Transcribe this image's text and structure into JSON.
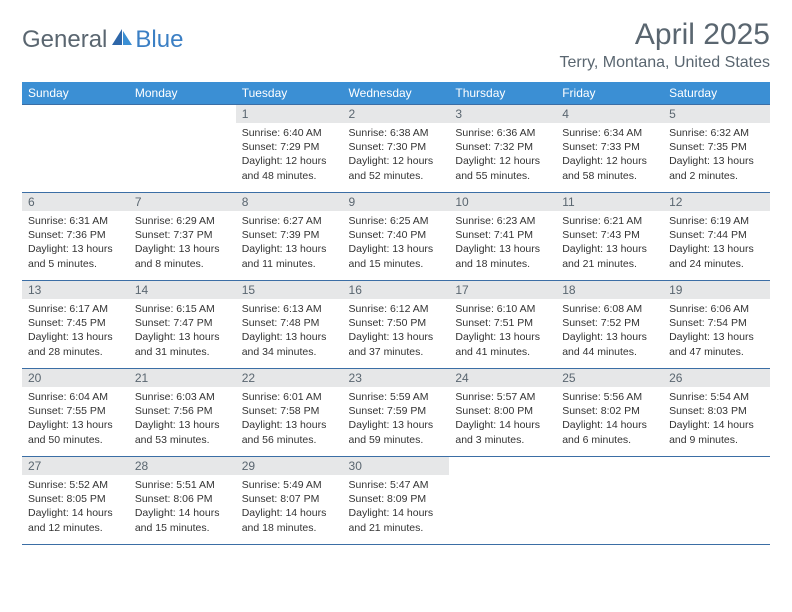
{
  "logo": {
    "general": "General",
    "blue": "Blue"
  },
  "title": "April 2025",
  "location": "Terry, Montana, United States",
  "colors": {
    "header_bg": "#3b8fd4",
    "header_text": "#ffffff",
    "daynum_bg": "#e6e7e8",
    "text_muted": "#5a6670",
    "rule": "#3b6ea5",
    "accent": "#3b7fc4"
  },
  "day_headers": [
    "Sunday",
    "Monday",
    "Tuesday",
    "Wednesday",
    "Thursday",
    "Friday",
    "Saturday"
  ],
  "weeks": [
    [
      {
        "n": "",
        "sunrise": "",
        "sunset": "",
        "daylight": ""
      },
      {
        "n": "",
        "sunrise": "",
        "sunset": "",
        "daylight": ""
      },
      {
        "n": "1",
        "sunrise": "Sunrise: 6:40 AM",
        "sunset": "Sunset: 7:29 PM",
        "daylight": "Daylight: 12 hours and 48 minutes."
      },
      {
        "n": "2",
        "sunrise": "Sunrise: 6:38 AM",
        "sunset": "Sunset: 7:30 PM",
        "daylight": "Daylight: 12 hours and 52 minutes."
      },
      {
        "n": "3",
        "sunrise": "Sunrise: 6:36 AM",
        "sunset": "Sunset: 7:32 PM",
        "daylight": "Daylight: 12 hours and 55 minutes."
      },
      {
        "n": "4",
        "sunrise": "Sunrise: 6:34 AM",
        "sunset": "Sunset: 7:33 PM",
        "daylight": "Daylight: 12 hours and 58 minutes."
      },
      {
        "n": "5",
        "sunrise": "Sunrise: 6:32 AM",
        "sunset": "Sunset: 7:35 PM",
        "daylight": "Daylight: 13 hours and 2 minutes."
      }
    ],
    [
      {
        "n": "6",
        "sunrise": "Sunrise: 6:31 AM",
        "sunset": "Sunset: 7:36 PM",
        "daylight": "Daylight: 13 hours and 5 minutes."
      },
      {
        "n": "7",
        "sunrise": "Sunrise: 6:29 AM",
        "sunset": "Sunset: 7:37 PM",
        "daylight": "Daylight: 13 hours and 8 minutes."
      },
      {
        "n": "8",
        "sunrise": "Sunrise: 6:27 AM",
        "sunset": "Sunset: 7:39 PM",
        "daylight": "Daylight: 13 hours and 11 minutes."
      },
      {
        "n": "9",
        "sunrise": "Sunrise: 6:25 AM",
        "sunset": "Sunset: 7:40 PM",
        "daylight": "Daylight: 13 hours and 15 minutes."
      },
      {
        "n": "10",
        "sunrise": "Sunrise: 6:23 AM",
        "sunset": "Sunset: 7:41 PM",
        "daylight": "Daylight: 13 hours and 18 minutes."
      },
      {
        "n": "11",
        "sunrise": "Sunrise: 6:21 AM",
        "sunset": "Sunset: 7:43 PM",
        "daylight": "Daylight: 13 hours and 21 minutes."
      },
      {
        "n": "12",
        "sunrise": "Sunrise: 6:19 AM",
        "sunset": "Sunset: 7:44 PM",
        "daylight": "Daylight: 13 hours and 24 minutes."
      }
    ],
    [
      {
        "n": "13",
        "sunrise": "Sunrise: 6:17 AM",
        "sunset": "Sunset: 7:45 PM",
        "daylight": "Daylight: 13 hours and 28 minutes."
      },
      {
        "n": "14",
        "sunrise": "Sunrise: 6:15 AM",
        "sunset": "Sunset: 7:47 PM",
        "daylight": "Daylight: 13 hours and 31 minutes."
      },
      {
        "n": "15",
        "sunrise": "Sunrise: 6:13 AM",
        "sunset": "Sunset: 7:48 PM",
        "daylight": "Daylight: 13 hours and 34 minutes."
      },
      {
        "n": "16",
        "sunrise": "Sunrise: 6:12 AM",
        "sunset": "Sunset: 7:50 PM",
        "daylight": "Daylight: 13 hours and 37 minutes."
      },
      {
        "n": "17",
        "sunrise": "Sunrise: 6:10 AM",
        "sunset": "Sunset: 7:51 PM",
        "daylight": "Daylight: 13 hours and 41 minutes."
      },
      {
        "n": "18",
        "sunrise": "Sunrise: 6:08 AM",
        "sunset": "Sunset: 7:52 PM",
        "daylight": "Daylight: 13 hours and 44 minutes."
      },
      {
        "n": "19",
        "sunrise": "Sunrise: 6:06 AM",
        "sunset": "Sunset: 7:54 PM",
        "daylight": "Daylight: 13 hours and 47 minutes."
      }
    ],
    [
      {
        "n": "20",
        "sunrise": "Sunrise: 6:04 AM",
        "sunset": "Sunset: 7:55 PM",
        "daylight": "Daylight: 13 hours and 50 minutes."
      },
      {
        "n": "21",
        "sunrise": "Sunrise: 6:03 AM",
        "sunset": "Sunset: 7:56 PM",
        "daylight": "Daylight: 13 hours and 53 minutes."
      },
      {
        "n": "22",
        "sunrise": "Sunrise: 6:01 AM",
        "sunset": "Sunset: 7:58 PM",
        "daylight": "Daylight: 13 hours and 56 minutes."
      },
      {
        "n": "23",
        "sunrise": "Sunrise: 5:59 AM",
        "sunset": "Sunset: 7:59 PM",
        "daylight": "Daylight: 13 hours and 59 minutes."
      },
      {
        "n": "24",
        "sunrise": "Sunrise: 5:57 AM",
        "sunset": "Sunset: 8:00 PM",
        "daylight": "Daylight: 14 hours and 3 minutes."
      },
      {
        "n": "25",
        "sunrise": "Sunrise: 5:56 AM",
        "sunset": "Sunset: 8:02 PM",
        "daylight": "Daylight: 14 hours and 6 minutes."
      },
      {
        "n": "26",
        "sunrise": "Sunrise: 5:54 AM",
        "sunset": "Sunset: 8:03 PM",
        "daylight": "Daylight: 14 hours and 9 minutes."
      }
    ],
    [
      {
        "n": "27",
        "sunrise": "Sunrise: 5:52 AM",
        "sunset": "Sunset: 8:05 PM",
        "daylight": "Daylight: 14 hours and 12 minutes."
      },
      {
        "n": "28",
        "sunrise": "Sunrise: 5:51 AM",
        "sunset": "Sunset: 8:06 PM",
        "daylight": "Daylight: 14 hours and 15 minutes."
      },
      {
        "n": "29",
        "sunrise": "Sunrise: 5:49 AM",
        "sunset": "Sunset: 8:07 PM",
        "daylight": "Daylight: 14 hours and 18 minutes."
      },
      {
        "n": "30",
        "sunrise": "Sunrise: 5:47 AM",
        "sunset": "Sunset: 8:09 PM",
        "daylight": "Daylight: 14 hours and 21 minutes."
      },
      {
        "n": "",
        "sunrise": "",
        "sunset": "",
        "daylight": ""
      },
      {
        "n": "",
        "sunrise": "",
        "sunset": "",
        "daylight": ""
      },
      {
        "n": "",
        "sunrise": "",
        "sunset": "",
        "daylight": ""
      }
    ]
  ]
}
